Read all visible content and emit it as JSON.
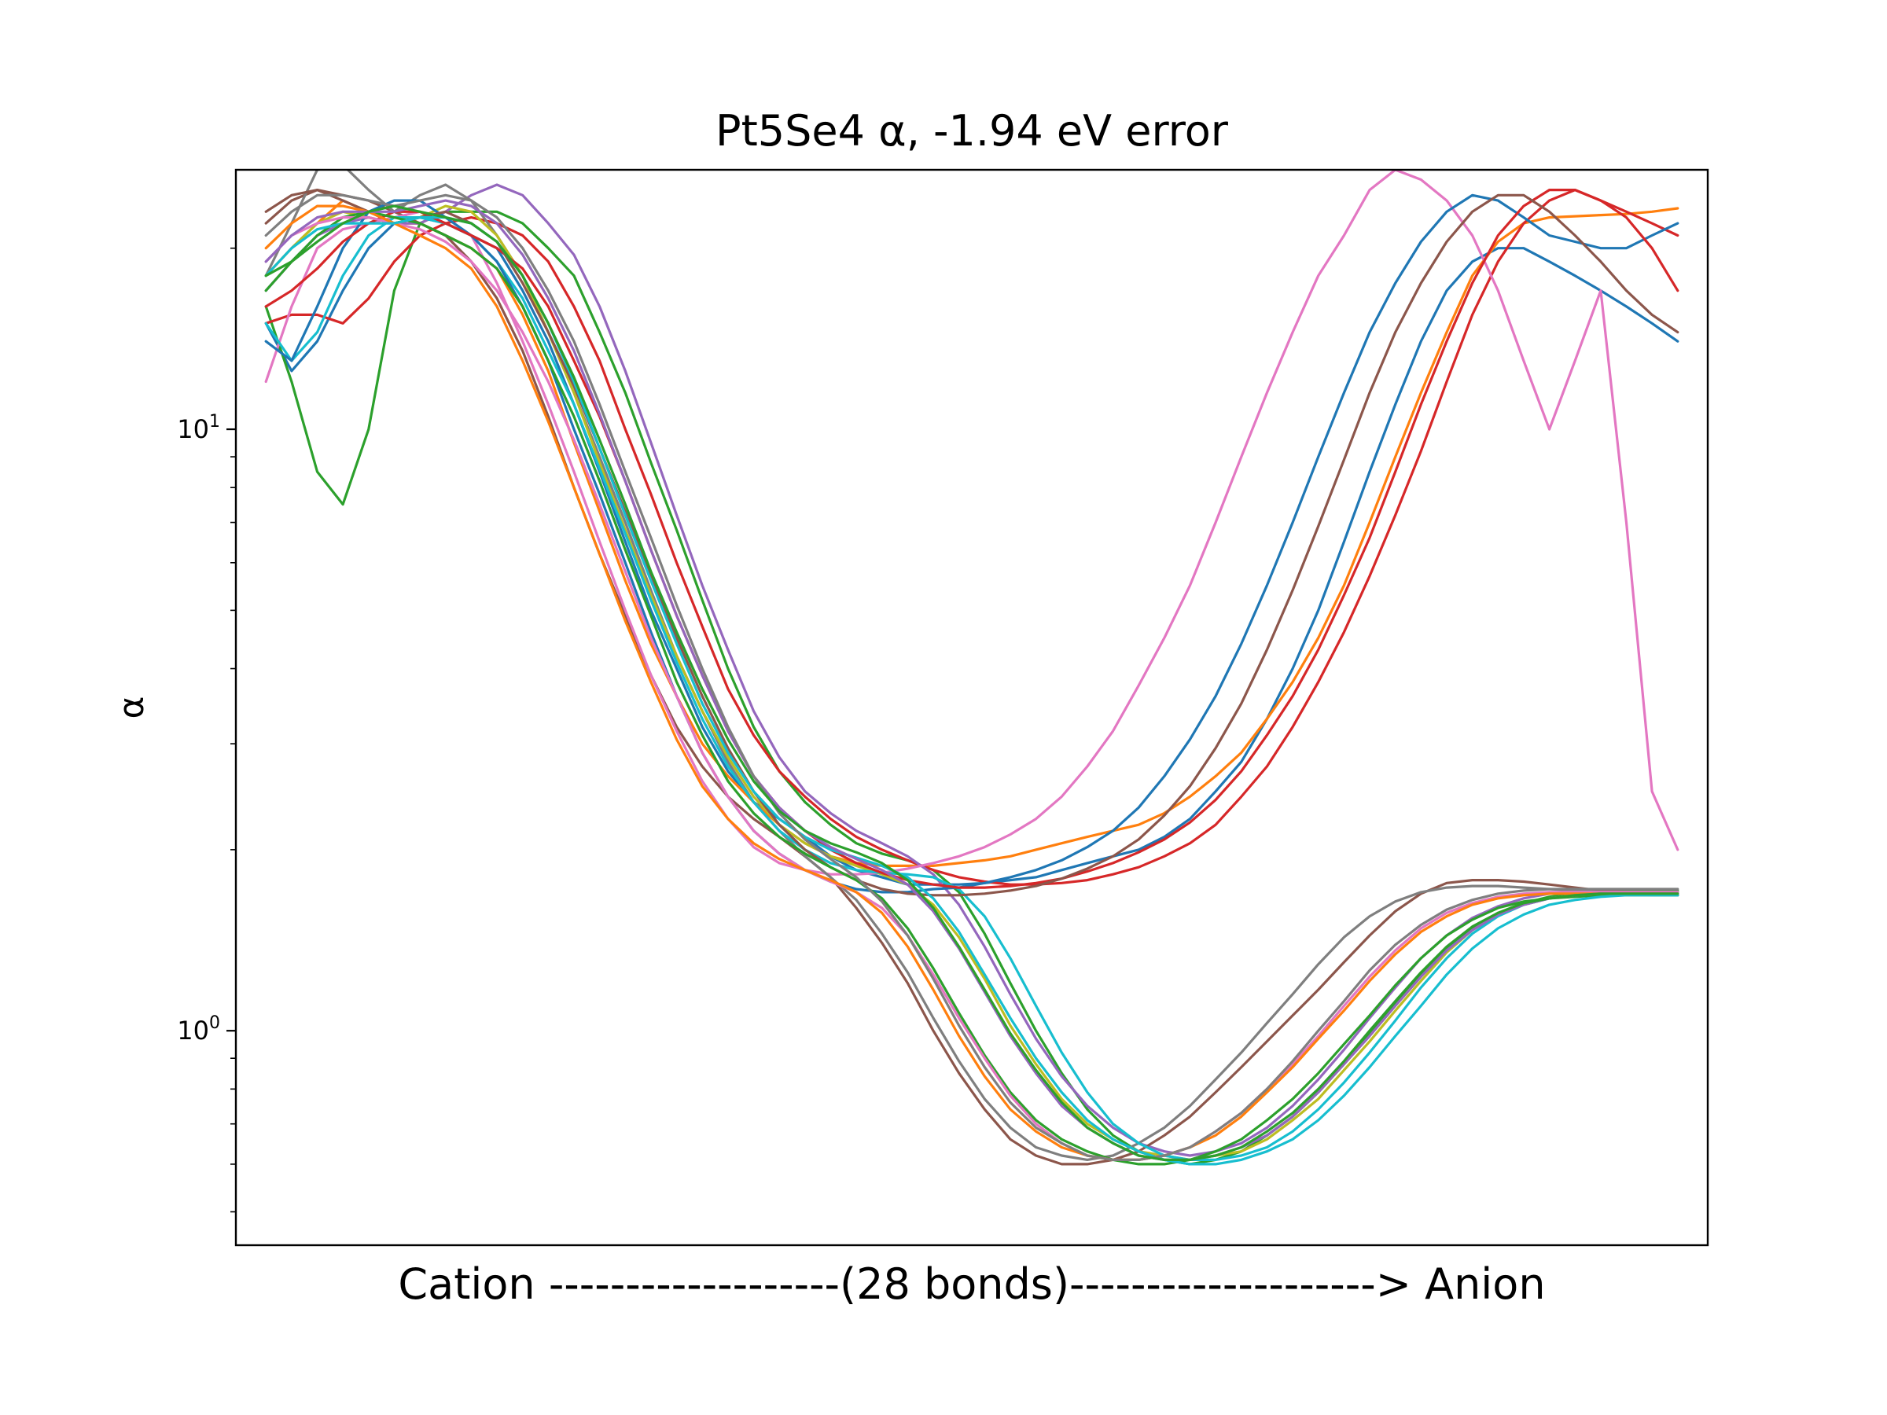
{
  "chart_data": {
    "type": "line",
    "title": "Pt5Se4 α, -1.94 eV error",
    "xlabel": "Cation -------------------(28 bonds)--------------------> Anion",
    "ylabel": "α",
    "yscale": "log",
    "ylim": [
      0.44,
      27
    ],
    "xlim": [
      0,
      49
    ],
    "grid": false,
    "legend": "none",
    "yticks": [
      {
        "value": 1,
        "base": "10",
        "exp": "0"
      },
      {
        "value": 10,
        "base": "10",
        "exp": "1"
      }
    ],
    "palette": [
      "#1f77b4",
      "#ff7f0e",
      "#2ca02c",
      "#d62728",
      "#9467bd",
      "#8c564b",
      "#e377c2",
      "#7f7f7f",
      "#bcbd22",
      "#17becf"
    ],
    "series": [
      {
        "color": "#1f77b4",
        "values": [
          15,
          12.5,
          14,
          17,
          20,
          22,
          22.5,
          22,
          21,
          20,
          17,
          14,
          11,
          8.5,
          6.5,
          5,
          4,
          3.2,
          2.7,
          2.4,
          2.25,
          2.1,
          1.95,
          1.85,
          1.8,
          1.75,
          1.75,
          1.75,
          1.76,
          1.78,
          1.8,
          1.85,
          1.9,
          1.95,
          2,
          2.1,
          2.25,
          2.5,
          2.8,
          3.3,
          4,
          5,
          6.5,
          8.5,
          11,
          14,
          17,
          19,
          20,
          20,
          19,
          18,
          17,
          16,
          15,
          14
        ]
      },
      {
        "color": "#ff7f0e",
        "values": [
          18,
          20,
          22,
          24,
          23,
          22,
          22,
          21,
          20,
          18.5,
          15.5,
          12.5,
          9.5,
          7.3,
          5.6,
          4.4,
          3.6,
          3,
          2.65,
          2.4,
          2.2,
          2.05,
          1.95,
          1.9,
          1.88,
          1.88,
          1.88,
          1.9,
          1.92,
          1.95,
          2,
          2.05,
          2.1,
          2.15,
          2.2,
          2.3,
          2.45,
          2.65,
          2.9,
          3.3,
          3.8,
          4.5,
          5.5,
          7,
          9,
          11.5,
          14.5,
          18,
          20.5,
          22,
          22.5,
          22.6,
          22.7,
          22.8,
          23,
          23.3
        ]
      },
      {
        "color": "#2ca02c",
        "values": [
          16,
          12,
          8.5,
          7.5,
          10,
          17,
          22,
          23,
          23,
          23,
          22,
          20,
          18,
          14.5,
          11.5,
          8.8,
          6.8,
          5.2,
          4,
          3.2,
          2.7,
          2.4,
          2.2,
          2.05,
          1.97,
          1.92,
          1.85,
          1.7,
          1.45,
          1.2,
          1,
          0.85,
          0.74,
          0.67,
          0.63,
          0.61,
          0.6,
          0.61,
          0.63,
          0.67,
          0.72,
          0.79,
          0.88,
          0.99,
          1.11,
          1.24,
          1.37,
          1.48,
          1.57,
          1.63,
          1.67,
          1.69,
          1.7,
          1.71,
          1.71,
          1.71
        ]
      },
      {
        "color": "#d62728",
        "values": [
          15,
          15.5,
          15.5,
          15,
          16.5,
          19,
          21,
          22,
          22.5,
          22,
          21,
          19,
          16,
          13,
          10,
          7.8,
          6,
          4.7,
          3.7,
          3.1,
          2.7,
          2.45,
          2.25,
          2.1,
          2,
          1.92,
          1.85,
          1.8,
          1.77,
          1.75,
          1.75,
          1.76,
          1.78,
          1.82,
          1.87,
          1.95,
          2.05,
          2.2,
          2.45,
          2.75,
          3.2,
          3.8,
          4.6,
          5.7,
          7.2,
          9.2,
          12,
          15.5,
          19,
          22,
          24,
          25,
          24,
          23,
          22,
          21
        ]
      },
      {
        "color": "#9467bd",
        "values": [
          17,
          19,
          21,
          22,
          22.5,
          22,
          22,
          23,
          24.5,
          25.5,
          24.5,
          22,
          19.5,
          16,
          12.5,
          9.5,
          7.2,
          5.5,
          4.3,
          3.4,
          2.85,
          2.5,
          2.3,
          2.15,
          2.05,
          1.95,
          1.82,
          1.62,
          1.38,
          1.15,
          0.97,
          0.84,
          0.75,
          0.69,
          0.65,
          0.63,
          0.62,
          0.63,
          0.65,
          0.69,
          0.75,
          0.83,
          0.93,
          1.05,
          1.18,
          1.32,
          1.44,
          1.54,
          1.61,
          1.66,
          1.69,
          1.7,
          1.7,
          1.7,
          1.7,
          1.7
        ]
      },
      {
        "color": "#8c564b",
        "values": [
          22,
          24,
          25,
          24.5,
          24,
          23,
          22,
          21,
          19,
          16.5,
          13.5,
          10.5,
          8,
          6.2,
          4.9,
          3.9,
          3.2,
          2.75,
          2.45,
          2.25,
          2.1,
          1.95,
          1.8,
          1.6,
          1.4,
          1.2,
          1,
          0.85,
          0.74,
          0.66,
          0.62,
          0.6,
          0.6,
          0.61,
          0.63,
          0.67,
          0.72,
          0.79,
          0.87,
          0.96,
          1.06,
          1.17,
          1.3,
          1.44,
          1.58,
          1.69,
          1.76,
          1.78,
          1.78,
          1.77,
          1.75,
          1.73,
          1.71,
          1.7,
          1.69,
          1.68
        ]
      },
      {
        "color": "#e377c2",
        "values": [
          12,
          16,
          20,
          21.5,
          22,
          22.5,
          23,
          22.5,
          21,
          17.5,
          14,
          11,
          8.5,
          6.5,
          5,
          3.9,
          3.15,
          2.6,
          2.25,
          2.02,
          1.9,
          1.85,
          1.82,
          1.82,
          1.83,
          1.86,
          1.9,
          1.95,
          2.02,
          2.12,
          2.25,
          2.45,
          2.75,
          3.15,
          3.75,
          4.5,
          5.5,
          7,
          9,
          11.5,
          14.5,
          18,
          21,
          25,
          27,
          26,
          24,
          21,
          17,
          13,
          10,
          13,
          17,
          7,
          2.5,
          2
        ]
      },
      {
        "color": "#7f7f7f",
        "values": [
          18,
          22,
          27,
          27.5,
          25,
          23,
          24.5,
          25.5,
          24,
          21,
          18,
          14.5,
          11.5,
          9,
          7,
          5.4,
          4.2,
          3.4,
          2.8,
          2.4,
          2.15,
          1.95,
          1.8,
          1.65,
          1.45,
          1.25,
          1.05,
          0.89,
          0.77,
          0.69,
          0.64,
          0.62,
          0.61,
          0.62,
          0.65,
          0.69,
          0.75,
          0.83,
          0.92,
          1.03,
          1.15,
          1.29,
          1.43,
          1.55,
          1.64,
          1.7,
          1.73,
          1.74,
          1.74,
          1.73,
          1.72,
          1.71,
          1.7,
          1.7,
          1.7,
          1.7
        ]
      },
      {
        "color": "#bcbd22",
        "values": [
          18,
          20,
          22,
          23,
          22.5,
          22,
          22.5,
          23.5,
          23,
          21,
          18,
          14.5,
          11.5,
          8.8,
          6.8,
          5.3,
          4.2,
          3.4,
          2.85,
          2.45,
          2.2,
          2.05,
          1.95,
          1.88,
          1.82,
          1.75,
          1.62,
          1.43,
          1.22,
          1.02,
          0.88,
          0.77,
          0.7,
          0.66,
          0.63,
          0.62,
          0.61,
          0.62,
          0.63,
          0.66,
          0.71,
          0.77,
          0.86,
          0.96,
          1.08,
          1.21,
          1.35,
          1.47,
          1.56,
          1.62,
          1.66,
          1.68,
          1.69,
          1.69,
          1.69,
          1.69
        ]
      },
      {
        "color": "#17becf",
        "values": [
          15,
          13,
          14.5,
          18,
          21,
          22.5,
          22.5,
          22,
          21,
          19,
          16.5,
          13.5,
          11,
          8.6,
          6.7,
          5.2,
          4.1,
          3.3,
          2.75,
          2.4,
          2.15,
          2,
          1.9,
          1.85,
          1.83,
          1.82,
          1.8,
          1.72,
          1.55,
          1.32,
          1.1,
          0.92,
          0.79,
          0.7,
          0.65,
          0.62,
          0.61,
          0.61,
          0.62,
          0.64,
          0.68,
          0.74,
          0.82,
          0.92,
          1.04,
          1.18,
          1.32,
          1.45,
          1.55,
          1.62,
          1.66,
          1.68,
          1.69,
          1.69,
          1.68,
          1.68
        ]
      },
      {
        "color": "#1f77b4",
        "values": [
          14,
          13,
          16,
          20,
          23,
          24,
          24,
          22.5,
          21,
          19,
          16,
          13,
          10,
          7.8,
          6,
          4.6,
          3.6,
          2.9,
          2.45,
          2.15,
          1.97,
          1.85,
          1.77,
          1.72,
          1.7,
          1.7,
          1.72,
          1.73,
          1.76,
          1.8,
          1.85,
          1.92,
          2.02,
          2.15,
          2.35,
          2.65,
          3.05,
          3.6,
          4.4,
          5.5,
          7,
          9,
          11.5,
          14.5,
          17.5,
          20.5,
          23,
          24.5,
          24,
          22.5,
          21,
          20.5,
          20,
          20,
          21,
          22
        ]
      },
      {
        "color": "#d62728",
        "values": [
          16,
          17,
          18.5,
          20.5,
          22,
          23,
          23,
          22,
          21,
          20,
          18.5,
          16,
          13,
          10.5,
          8.2,
          6.3,
          4.9,
          3.9,
          3.15,
          2.65,
          2.35,
          2.15,
          2,
          1.9,
          1.83,
          1.78,
          1.75,
          1.73,
          1.73,
          1.74,
          1.76,
          1.79,
          1.84,
          1.9,
          1.98,
          2.08,
          2.22,
          2.42,
          2.7,
          3.1,
          3.6,
          4.3,
          5.3,
          6.6,
          8.5,
          11,
          14,
          17.5,
          21,
          23.5,
          25,
          25,
          24,
          22.5,
          20,
          17
        ]
      },
      {
        "color": "#8c564b",
        "values": [
          23,
          24.5,
          25,
          24,
          23,
          22,
          22.5,
          23,
          22,
          20.5,
          17.5,
          14.5,
          11.8,
          9.3,
          7.3,
          5.7,
          4.5,
          3.6,
          2.95,
          2.5,
          2.2,
          2,
          1.87,
          1.78,
          1.72,
          1.69,
          1.68,
          1.68,
          1.69,
          1.71,
          1.74,
          1.79,
          1.86,
          1.95,
          2.08,
          2.28,
          2.55,
          2.95,
          3.5,
          4.3,
          5.4,
          6.9,
          8.9,
          11.5,
          14.5,
          17.5,
          20.5,
          23,
          24.5,
          24.5,
          23,
          21,
          19,
          17,
          15.5,
          14.5
        ]
      },
      {
        "color": "#2ca02c",
        "values": [
          17,
          19,
          21,
          22.5,
          23,
          22.5,
          22,
          21,
          20,
          18.5,
          16,
          13,
          10.5,
          8.2,
          6.3,
          4.9,
          3.8,
          3.1,
          2.6,
          2.3,
          2.1,
          1.97,
          1.87,
          1.78,
          1.66,
          1.48,
          1.27,
          1.07,
          0.91,
          0.79,
          0.71,
          0.66,
          0.63,
          0.61,
          0.6,
          0.6,
          0.61,
          0.63,
          0.66,
          0.71,
          0.77,
          0.85,
          0.95,
          1.06,
          1.19,
          1.32,
          1.44,
          1.53,
          1.6,
          1.64,
          1.66,
          1.67,
          1.68,
          1.68,
          1.68,
          1.68
        ]
      },
      {
        "color": "#e377c2",
        "values": [
          19,
          21,
          22,
          22.5,
          22.5,
          22,
          21.5,
          20.5,
          19,
          17,
          14.5,
          12,
          9.6,
          7.5,
          5.8,
          4.5,
          3.6,
          2.9,
          2.45,
          2.15,
          1.97,
          1.85,
          1.77,
          1.7,
          1.6,
          1.44,
          1.24,
          1.05,
          0.9,
          0.78,
          0.7,
          0.65,
          0.62,
          0.61,
          0.61,
          0.62,
          0.64,
          0.68,
          0.73,
          0.8,
          0.88,
          0.98,
          1.1,
          1.23,
          1.36,
          1.48,
          1.57,
          1.63,
          1.67,
          1.69,
          1.7,
          1.7,
          1.7,
          1.7,
          1.7,
          1.7
        ]
      },
      {
        "color": "#ff7f0e",
        "values": [
          20,
          22,
          23.5,
          23.5,
          23,
          22,
          21,
          20,
          18.5,
          16,
          13,
          10.3,
          8,
          6.2,
          4.8,
          3.8,
          3.05,
          2.55,
          2.25,
          2.05,
          1.93,
          1.85,
          1.78,
          1.7,
          1.57,
          1.38,
          1.17,
          0.98,
          0.84,
          0.74,
          0.68,
          0.64,
          0.62,
          0.61,
          0.61,
          0.62,
          0.64,
          0.67,
          0.72,
          0.79,
          0.87,
          0.97,
          1.08,
          1.21,
          1.34,
          1.46,
          1.55,
          1.62,
          1.66,
          1.68,
          1.69,
          1.69,
          1.69,
          1.69,
          1.69,
          1.69
        ]
      },
      {
        "color": "#17becf",
        "values": [
          18,
          20,
          21.5,
          22,
          22,
          22,
          22.5,
          22.5,
          22,
          20.5,
          18,
          15,
          12,
          9.3,
          7.2,
          5.6,
          4.4,
          3.5,
          2.9,
          2.5,
          2.25,
          2.1,
          2,
          1.94,
          1.88,
          1.8,
          1.66,
          1.46,
          1.24,
          1.05,
          0.9,
          0.79,
          0.71,
          0.66,
          0.63,
          0.61,
          0.6,
          0.6,
          0.61,
          0.63,
          0.66,
          0.71,
          0.78,
          0.87,
          0.98,
          1.1,
          1.24,
          1.37,
          1.48,
          1.56,
          1.62,
          1.65,
          1.67,
          1.68,
          1.68,
          1.68
        ]
      },
      {
        "color": "#9467bd",
        "values": [
          19,
          21,
          22.5,
          23,
          23,
          23,
          23.5,
          24,
          23.5,
          22,
          19.5,
          16.5,
          13.5,
          10.6,
          8.2,
          6.3,
          4.9,
          3.9,
          3.15,
          2.65,
          2.35,
          2.15,
          2.02,
          1.93,
          1.85,
          1.75,
          1.58,
          1.37,
          1.16,
          0.98,
          0.85,
          0.75,
          0.69,
          0.65,
          0.62,
          0.61,
          0.61,
          0.62,
          0.64,
          0.67,
          0.72,
          0.79,
          0.88,
          0.98,
          1.1,
          1.23,
          1.36,
          1.47,
          1.56,
          1.62,
          1.66,
          1.68,
          1.69,
          1.69,
          1.69,
          1.69
        ]
      },
      {
        "color": "#7f7f7f",
        "values": [
          21,
          23,
          24.5,
          24.5,
          24,
          23.5,
          24,
          24.5,
          24,
          22.5,
          20,
          17,
          14,
          11,
          8.5,
          6.6,
          5.1,
          4,
          3.2,
          2.65,
          2.3,
          2.08,
          1.93,
          1.8,
          1.64,
          1.44,
          1.22,
          1.02,
          0.87,
          0.76,
          0.69,
          0.65,
          0.62,
          0.61,
          0.61,
          0.62,
          0.64,
          0.68,
          0.73,
          0.8,
          0.89,
          1,
          1.12,
          1.26,
          1.39,
          1.5,
          1.59,
          1.65,
          1.69,
          1.71,
          1.72,
          1.72,
          1.72,
          1.72,
          1.72,
          1.72
        ]
      },
      {
        "color": "#2ca02c",
        "values": [
          18,
          19,
          20.5,
          22,
          23,
          23.5,
          23,
          22.5,
          22,
          20.5,
          18,
          15,
          12.2,
          9.6,
          7.5,
          5.8,
          4.6,
          3.7,
          3.05,
          2.6,
          2.32,
          2.15,
          2.05,
          1.98,
          1.9,
          1.78,
          1.6,
          1.38,
          1.17,
          0.99,
          0.86,
          0.76,
          0.69,
          0.65,
          0.62,
          0.61,
          0.61,
          0.62,
          0.64,
          0.68,
          0.73,
          0.8,
          0.89,
          1,
          1.12,
          1.25,
          1.38,
          1.49,
          1.57,
          1.63,
          1.66,
          1.68,
          1.69,
          1.69,
          1.69,
          1.69
        ]
      }
    ]
  }
}
